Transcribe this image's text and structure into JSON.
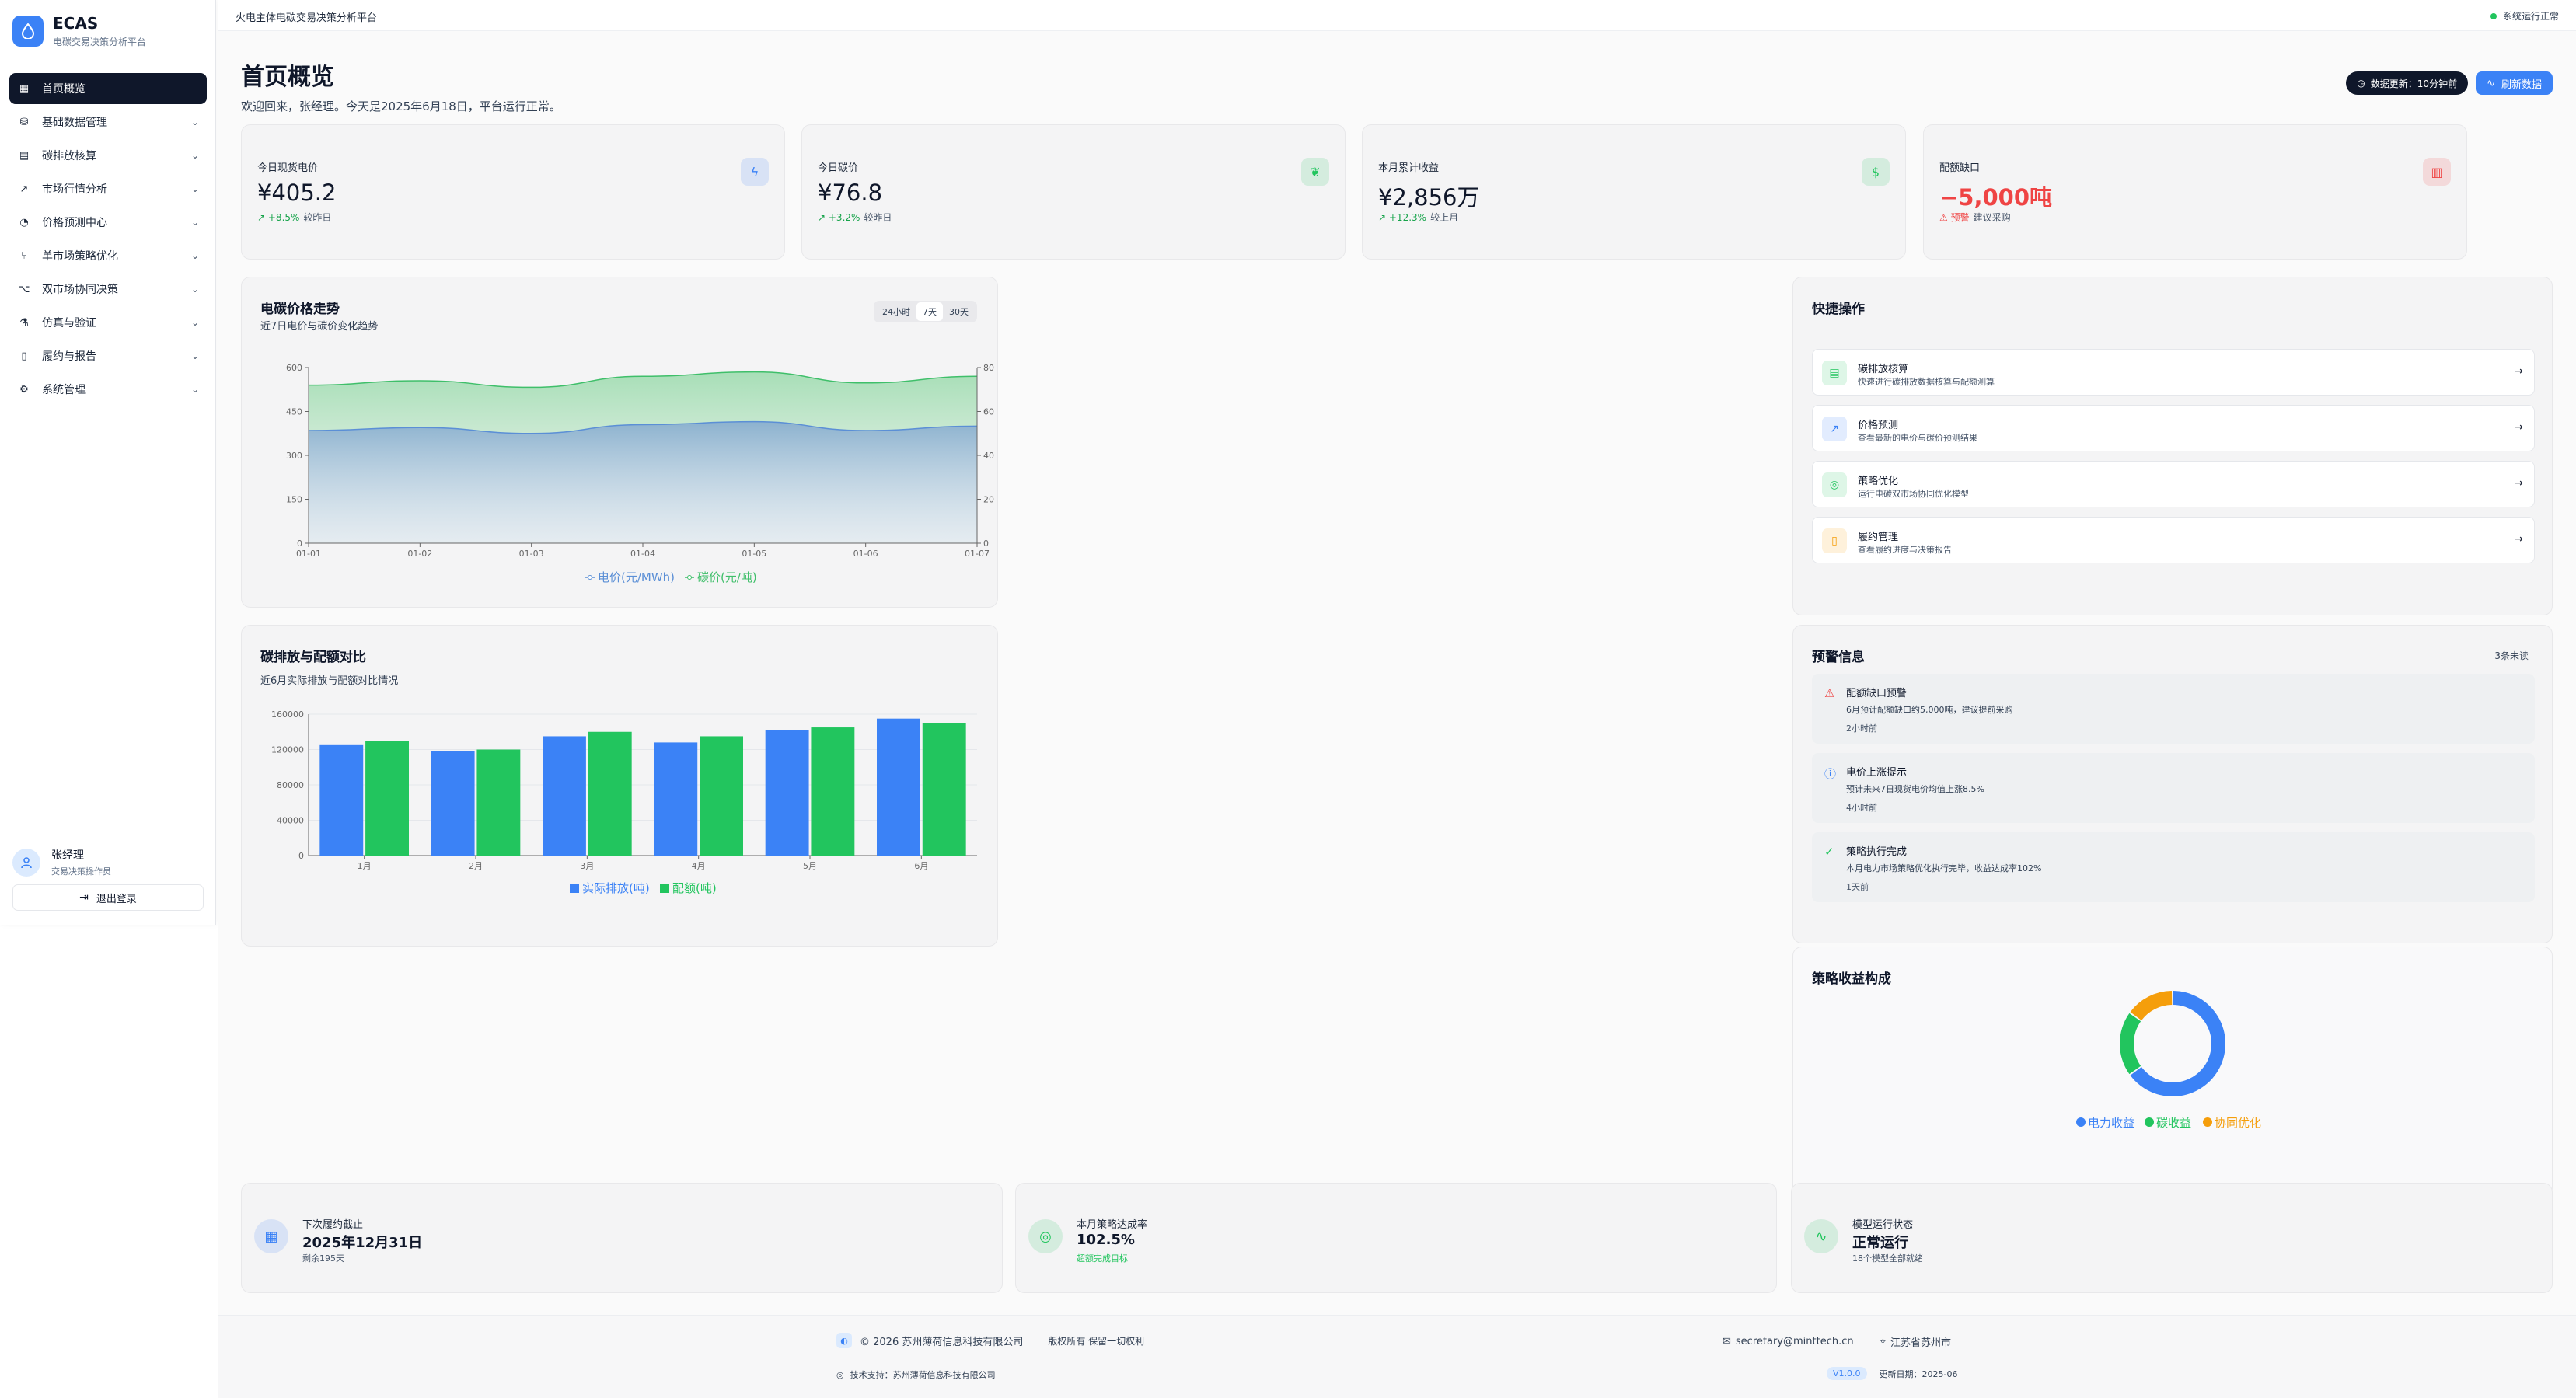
{
  "app": {
    "name": "ECAS",
    "subtitle": "电碳交易决策分析平台",
    "logo_icon": "droplet-icon"
  },
  "topbar": {
    "title": "火电主体电碳交易决策分析平台",
    "status": "系统运行正常"
  },
  "sidebar": {
    "items": [
      {
        "label": "首页概览",
        "icon": "grid-icon",
        "active": true
      },
      {
        "label": "基础数据管理",
        "icon": "database-icon"
      },
      {
        "label": "碳排放核算",
        "icon": "calculator-icon"
      },
      {
        "label": "市场行情分析",
        "icon": "trending-up-icon"
      },
      {
        "label": "价格预测中心",
        "icon": "pie-chart-icon"
      },
      {
        "label": "单市场策略优化",
        "icon": "branch-icon"
      },
      {
        "label": "双市场协同决策",
        "icon": "network-icon"
      },
      {
        "label": "仿真与验证",
        "icon": "flask-icon"
      },
      {
        "label": "履约与报告",
        "icon": "file-icon"
      },
      {
        "label": "系统管理",
        "icon": "gear-icon"
      }
    ],
    "user": {
      "name": "张经理",
      "role": "交易决策操作员"
    },
    "logout": "退出登录"
  },
  "header": {
    "title": "首页概览",
    "subtitle": "欢迎回来，张经理。今天是2025年6月18日，平台运行正常。",
    "update_badge": "数据更新：10分钟前",
    "refresh_button": "刷新数据"
  },
  "kpis": [
    {
      "label": "今日现货电价",
      "value": "¥405.2",
      "delta": "+8.5%",
      "delta_note": "较昨日",
      "icon": "bolt-icon",
      "color": "#3b82f6"
    },
    {
      "label": "今日碳价",
      "value": "¥76.8",
      "delta": "+3.2%",
      "delta_note": "较昨日",
      "icon": "leaf-icon",
      "color": "#22c55e"
    },
    {
      "label": "本月累计收益",
      "value": "¥2,856万",
      "delta": "+12.3%",
      "delta_note": "较上月",
      "icon": "dollar-icon",
      "color": "#22c55e"
    },
    {
      "label": "配额缺口",
      "value": "−5,000吨",
      "delta": "预警",
      "delta_note": "建议采购",
      "icon": "bar-chart-icon",
      "color": "#ef4444"
    }
  ],
  "price_chart": {
    "title": "电碳价格走势",
    "subtitle": "近7日电价与碳价变化趋势",
    "ranges": [
      "24小时",
      "7天",
      "30天"
    ],
    "active_range": "7天"
  },
  "emission_chart": {
    "title": "碳排放与配额对比",
    "subtitle": "近6月实际排放与配额对比情况"
  },
  "quick_actions": {
    "title": "快捷操作",
    "items": [
      {
        "title": "碳排放核算",
        "desc": "快速进行碳排放数据核算与配额测算",
        "icon": "calculator-icon",
        "color": "#22c55e"
      },
      {
        "title": "价格预测",
        "desc": "查看最新的电价与碳价预测结果",
        "icon": "trending-up-icon",
        "color": "#3b82f6"
      },
      {
        "title": "策略优化",
        "desc": "运行电碳双市场协同优化模型",
        "icon": "target-icon",
        "color": "#22c55e"
      },
      {
        "title": "履约管理",
        "desc": "查看履约进度与决策报告",
        "icon": "file-icon",
        "color": "#f59e0b"
      }
    ]
  },
  "alerts": {
    "title": "预警信息",
    "count": "3条未读",
    "items": [
      {
        "title": "配额缺口预警",
        "desc": "6月预计配额缺口约5,000吨，建议提前采购",
        "time": "2小时前",
        "icon": "warning-icon",
        "color": "#ef4444"
      },
      {
        "title": "电价上涨提示",
        "desc": "预计未来7日现货电价均值上涨8.5%",
        "time": "4小时前",
        "icon": "info-icon",
        "color": "#3b82f6"
      },
      {
        "title": "策略执行完成",
        "desc": "本月电力市场策略优化执行完毕，收益达成率102%",
        "time": "1天前",
        "icon": "check-circle-icon",
        "color": "#22c55e"
      }
    ]
  },
  "revenue_chart": {
    "title": "策略收益构成"
  },
  "bottom_cards": [
    {
      "label": "下次履约截止",
      "value": "2025年12月31日",
      "note": "剩余195天",
      "icon": "calendar-icon",
      "color": "#3b82f6"
    },
    {
      "label": "本月策略达成率",
      "value": "102.5%",
      "note": "超额完成目标",
      "icon": "target-icon",
      "color": "#22c55e"
    },
    {
      "label": "模型运行状态",
      "value": "正常运行",
      "note": "18个模型全部就绪",
      "icon": "activity-icon",
      "color": "#22c55e"
    }
  ],
  "footer": {
    "copyright": "© 2026 苏州薄荷信息科技有限公司",
    "rights": "版权所有 保留一切权利",
    "email": "secretary@minttech.cn",
    "location": "江苏省苏州市",
    "support": "技术支持：苏州薄荷信息科技有限公司",
    "version": "V1.0.0",
    "update_date": "更新日期：2025-06"
  },
  "chart_data": [
    {
      "type": "area",
      "categories": [
        "01-01",
        "01-02",
        "01-03",
        "01-04",
        "01-05",
        "01-06",
        "01-07"
      ],
      "series": [
        {
          "name": "电价(元/MWh)",
          "values": [
            385,
            395,
            375,
            405,
            415,
            385,
            400
          ],
          "color": "#5b8fd6",
          "axis": "left"
        },
        {
          "name": "碳价(元/吨)",
          "values": [
            72,
            74,
            71,
            76,
            78,
            73,
            76
          ],
          "color": "#3fbf6a",
          "axis": "right"
        }
      ],
      "ylim_left": [
        0,
        600
      ],
      "yticks_left": [
        0,
        150,
        300,
        450,
        600
      ],
      "ylim_right": [
        0,
        80
      ],
      "yticks_right": [
        0,
        20,
        40,
        60,
        80
      ],
      "legend": "bottom"
    },
    {
      "type": "bar",
      "categories": [
        "1月",
        "2月",
        "3月",
        "4月",
        "5月",
        "6月"
      ],
      "series": [
        {
          "name": "实际排放(吨)",
          "values": [
            125000,
            118000,
            135000,
            128000,
            142000,
            155000
          ],
          "color": "#3b82f6"
        },
        {
          "name": "配额(吨)",
          "values": [
            130000,
            120000,
            140000,
            135000,
            145000,
            150000
          ],
          "color": "#22c55e"
        }
      ],
      "ylim": [
        0,
        160000
      ],
      "yticks": [
        0,
        40000,
        80000,
        120000,
        160000
      ],
      "legend": "bottom"
    },
    {
      "type": "pie",
      "donut": true,
      "labels": [
        "电力收益",
        "碳收益",
        "协同优化"
      ],
      "values": [
        65,
        20,
        15
      ],
      "colors": [
        "#3b82f6",
        "#22c55e",
        "#f59e0b"
      ],
      "legend": "bottom"
    }
  ]
}
